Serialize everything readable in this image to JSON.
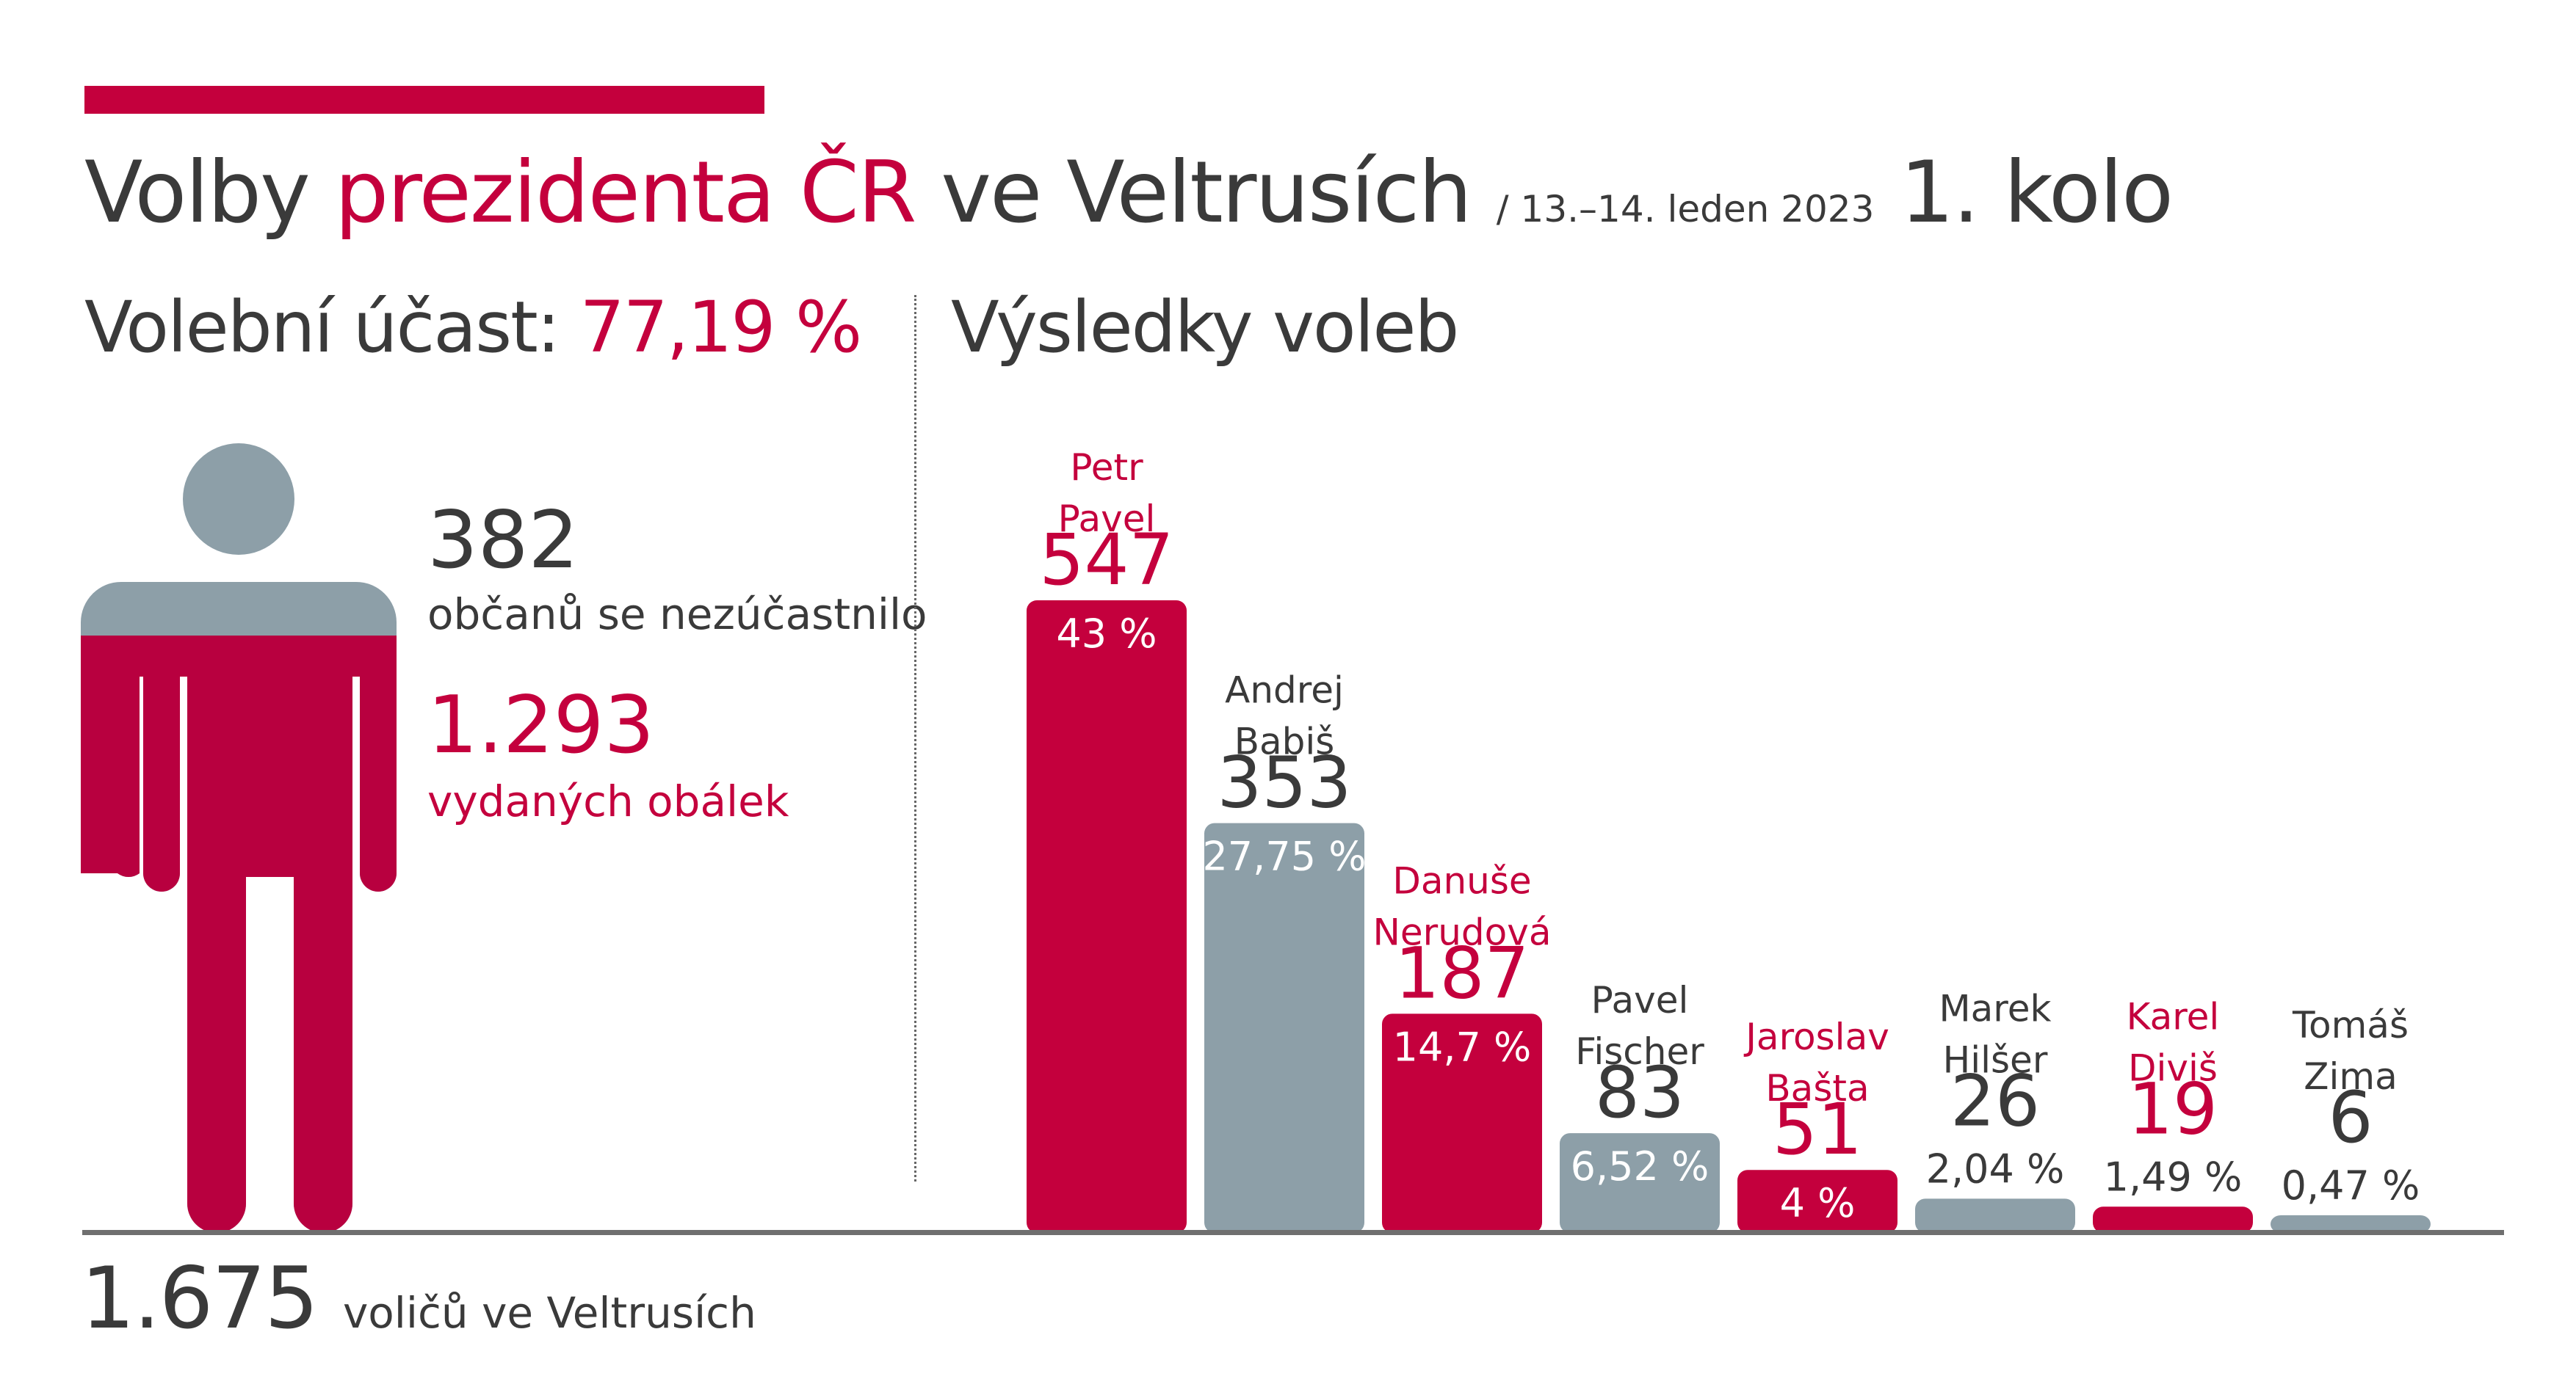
{
  "colors": {
    "crimson": "#c4003d",
    "crimson_dark": "#b8003f",
    "gray": "#8d9fa8",
    "text": "#3a3a3a",
    "white": "#ffffff"
  },
  "header": {
    "title_part1": "Volby",
    "title_highlight": "prezidenta ČR",
    "title_part2": "ve Veltrusích",
    "date": "/ 13.–14. leden 2023",
    "round": "1. kolo"
  },
  "turnout": {
    "label": "Volební účast:",
    "value": "77,19 %",
    "not_participated_num": "382",
    "not_participated_label": "občanů se nezúčastnilo",
    "envelopes_num": "1.293",
    "envelopes_label": "vydaných obálek",
    "voters_num": "1.675",
    "voters_label": "voličů ve Veltrusích",
    "figure_fill_fraction": 0.7719
  },
  "results": {
    "title": "Výsledky voleb"
  },
  "chart_data": {
    "type": "bar",
    "title": "Výsledky voleb",
    "categories": [
      "Petr Pavel",
      "Andrej Babiš",
      "Danuše Nerudová",
      "Pavel Fischer",
      "Jaroslav Bašta",
      "Marek Hilšer",
      "Karel Diviš",
      "Tomáš Zima"
    ],
    "values": [
      547,
      353,
      187,
      83,
      51,
      26,
      19,
      6
    ],
    "bars": [
      {
        "name_line1": "Petr",
        "name_line2": "Pavel",
        "votes": 547,
        "votes_label": "547",
        "percent": 43,
        "percent_label": "43 %",
        "color": "crimson"
      },
      {
        "name_line1": "Andrej",
        "name_line2": "Babiš",
        "votes": 353,
        "votes_label": "353",
        "percent": 27.75,
        "percent_label": "27,75 %",
        "color": "gray"
      },
      {
        "name_line1": "Danuše",
        "name_line2": "Nerudová",
        "votes": 187,
        "votes_label": "187",
        "percent": 14.7,
        "percent_label": "14,7 %",
        "color": "crimson"
      },
      {
        "name_line1": "Pavel",
        "name_line2": "Fischer",
        "votes": 83,
        "votes_label": "83",
        "percent": 6.52,
        "percent_label": "6,52 %",
        "color": "gray"
      },
      {
        "name_line1": "Jaroslav",
        "name_line2": "Bašta",
        "votes": 51,
        "votes_label": "51",
        "percent": 4,
        "percent_label": "4 %",
        "color": "crimson"
      },
      {
        "name_line1": "Marek",
        "name_line2": "Hilšer",
        "votes": 26,
        "votes_label": "26",
        "percent": 2.04,
        "percent_label": "2,04 %",
        "color": "gray"
      },
      {
        "name_line1": "Karel",
        "name_line2": "Diviš",
        "votes": 19,
        "votes_label": "19",
        "percent": 1.49,
        "percent_label": "1,49 %",
        "color": "crimson"
      },
      {
        "name_line1": "Tomáš",
        "name_line2": "Zima",
        "votes": 6,
        "votes_label": "6",
        "percent": 0.47,
        "percent_label": "0,47 %",
        "color": "gray"
      }
    ]
  }
}
